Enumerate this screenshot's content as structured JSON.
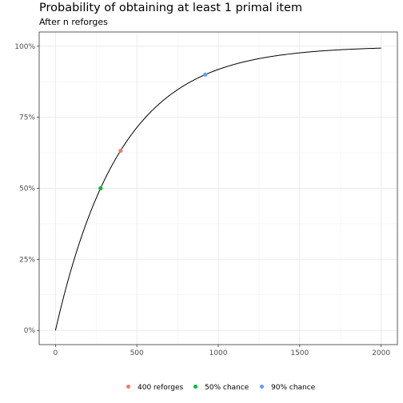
{
  "chart_data": {
    "type": "line",
    "title": "Probability of obtaining at least 1 primal item",
    "subtitle": "After n reforges",
    "xlabel": "",
    "ylabel": "",
    "xlim": [
      0,
      2000
    ],
    "ylim": [
      0,
      1
    ],
    "x_ticks": [
      0,
      500,
      1000,
      1500,
      2000
    ],
    "x_tick_labels": [
      "0",
      "500",
      "1000",
      "1500",
      "2000"
    ],
    "y_ticks": [
      0,
      0.25,
      0.5,
      0.75,
      1
    ],
    "y_tick_labels": [
      "0%",
      "25%",
      "50%",
      "75%",
      "100%"
    ],
    "grid": true,
    "legend_position": "bottom",
    "curve": {
      "p_per_reforge": 0.0025,
      "n_max": 2000,
      "color": "#000000"
    },
    "points": [
      {
        "name": "400 reforges",
        "x": 400,
        "y": 0.632,
        "color": "#F8766D"
      },
      {
        "name": "50% chance",
        "x": 277,
        "y": 0.5,
        "color": "#00BA38"
      },
      {
        "name": "90% chance",
        "x": 920,
        "y": 0.9,
        "color": "#619CFF"
      }
    ]
  }
}
